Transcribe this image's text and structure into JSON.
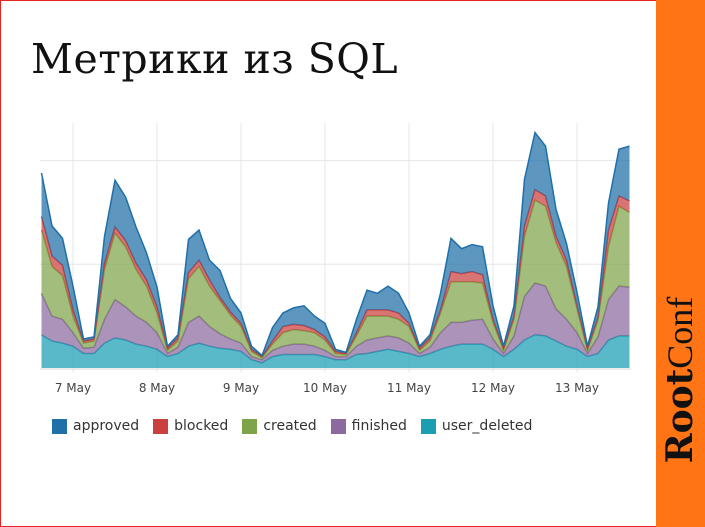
{
  "slide": {
    "title": "Метрики из SQL",
    "brand": {
      "bold": "Root",
      "light": "Conf"
    },
    "accent_color": "#ff7414"
  },
  "chart_data": {
    "type": "area",
    "stacked": true,
    "title": "",
    "xlabel": "",
    "ylabel": "",
    "y_tick_labels_shown": false,
    "grid": true,
    "legend_placement": "bottom",
    "x_ticks": [
      "7 May",
      "8 May",
      "9 May",
      "10 May",
      "11 May",
      "12 May",
      "13 May"
    ],
    "x": [
      "May 6 15:00",
      "May 6 18:00",
      "May 6 21:00",
      "May 7 00:00",
      "May 7 03:00",
      "May 7 06:00",
      "May 7 09:00",
      "May 7 12:00",
      "May 7 15:00",
      "May 7 18:00",
      "May 7 21:00",
      "May 8 00:00",
      "May 8 03:00",
      "May 8 06:00",
      "May 8 09:00",
      "May 8 12:00",
      "May 8 15:00",
      "May 8 18:00",
      "May 8 21:00",
      "May 9 00:00",
      "May 9 03:00",
      "May 9 06:00",
      "May 9 09:00",
      "May 9 12:00",
      "May 9 15:00",
      "May 9 18:00",
      "May 9 21:00",
      "May 10 00:00",
      "May 10 03:00",
      "May 10 06:00",
      "May 10 09:00",
      "May 10 12:00",
      "May 10 15:00",
      "May 10 18:00",
      "May 10 21:00",
      "May 11 00:00",
      "May 11 03:00",
      "May 11 06:00",
      "May 11 09:00",
      "May 11 12:00",
      "May 11 15:00",
      "May 11 18:00",
      "May 11 21:00",
      "May 12 00:00",
      "May 12 03:00",
      "May 12 06:00",
      "May 12 09:00",
      "May 12 12:00",
      "May 12 15:00",
      "May 12 18:00",
      "May 12 21:00",
      "May 13 00:00",
      "May 13 03:00",
      "May 13 06:00",
      "May 13 09:00",
      "May 13 12:00",
      "May 13 15:00"
    ],
    "series": [
      {
        "name": "user_deleted",
        "color": "#1b9eb4",
        "values": [
          32,
          26,
          24,
          21,
          14,
          14,
          24,
          29,
          27,
          23,
          21,
          18,
          11,
          14,
          21,
          24,
          21,
          19,
          18,
          16,
          8,
          5,
          11,
          13,
          13,
          13,
          13,
          11,
          8,
          8,
          13,
          14,
          16,
          18,
          16,
          14,
          11,
          14,
          18,
          21,
          23,
          23,
          23,
          18,
          11,
          18,
          27,
          32,
          31,
          26,
          21,
          18,
          11,
          14,
          27,
          31,
          31
        ]
      },
      {
        "name": "finished",
        "color": "#8c6aa0",
        "values": [
          40,
          24,
          23,
          13,
          5,
          6,
          23,
          37,
          32,
          27,
          23,
          16,
          3,
          6,
          23,
          26,
          19,
          14,
          10,
          8,
          3,
          3,
          6,
          8,
          10,
          10,
          8,
          6,
          3,
          3,
          8,
          13,
          13,
          13,
          13,
          10,
          3,
          6,
          16,
          23,
          21,
          23,
          24,
          10,
          3,
          13,
          42,
          50,
          48,
          31,
          26,
          16,
          3,
          16,
          39,
          48,
          47
        ]
      },
      {
        "name": "created",
        "color": "#7ea44a",
        "values": [
          61,
          48,
          42,
          16,
          5,
          6,
          48,
          64,
          58,
          45,
          35,
          19,
          3,
          6,
          42,
          48,
          39,
          32,
          23,
          16,
          5,
          2,
          6,
          13,
          14,
          13,
          13,
          10,
          3,
          2,
          10,
          23,
          21,
          19,
          18,
          16,
          3,
          6,
          19,
          39,
          39,
          37,
          35,
          16,
          3,
          16,
          58,
          80,
          77,
          64,
          51,
          23,
          3,
          16,
          51,
          77,
          72
        ]
      },
      {
        "name": "blocked",
        "color": "#c9403f",
        "values": [
          13,
          10,
          10,
          6,
          2,
          2,
          6,
          6,
          6,
          6,
          6,
          6,
          2,
          3,
          6,
          6,
          6,
          3,
          3,
          3,
          2,
          1,
          3,
          6,
          5,
          5,
          3,
          3,
          2,
          1,
          3,
          6,
          6,
          6,
          6,
          3,
          2,
          3,
          3,
          10,
          8,
          10,
          8,
          3,
          2,
          3,
          10,
          10,
          10,
          6,
          6,
          3,
          2,
          3,
          16,
          10,
          11
        ]
      },
      {
        "name": "approved",
        "color": "#1f6fa8",
        "values": [
          42,
          29,
          26,
          23,
          2,
          2,
          26,
          45,
          42,
          35,
          26,
          19,
          2,
          3,
          32,
          29,
          19,
          26,
          13,
          10,
          3,
          1,
          13,
          13,
          16,
          19,
          13,
          13,
          2,
          1,
          13,
          19,
          16,
          23,
          19,
          10,
          2,
          3,
          16,
          32,
          24,
          26,
          27,
          13,
          2,
          10,
          45,
          55,
          48,
          26,
          16,
          13,
          2,
          10,
          26,
          45,
          53
        ]
      }
    ],
    "legend": [
      "approved",
      "blocked",
      "created",
      "finished",
      "user_deleted"
    ]
  }
}
